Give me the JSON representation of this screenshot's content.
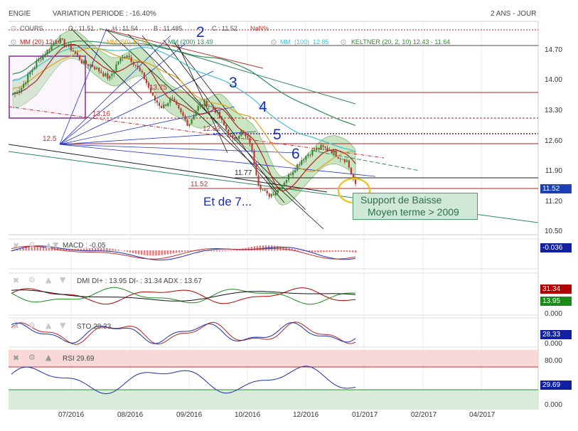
{
  "header": {
    "symbol": "ENGIE",
    "variation": "VARIATION PERIODE : -16.40%",
    "period": "2 ANS - JOUR"
  },
  "ohlc_legend": {
    "label": "COURS",
    "o": "O : 11.51",
    "h": "H : 11.54",
    "b": "B : 11.485",
    "c": "C : 11.52",
    "nan": "NaN%"
  },
  "indicators": {
    "mm20": "MM (20) 12.10",
    "mm50": "MM (50) 13.16",
    "mm200": "MM (200) 13.49",
    "mm100_label": "MM",
    "mm100_period": "(100)",
    "mm100_value": "12.85",
    "keltner": "KELTNER (20, 2, 10) 12.43 - 11.64"
  },
  "annotations": {
    "n2": "2",
    "n3": "3",
    "n4": "4",
    "n5": "5",
    "n6": "6",
    "et7": "Et de 7...",
    "support_line1": "Support de Baisse",
    "support_line2": "Moyen terme > 2009",
    "lvl_1375": "13.75",
    "lvl_1316": "13.16",
    "lvl_1282": "12.82",
    "lvl_125": "12.5",
    "lvl_1177": "11.77",
    "lvl_1152": "11.52"
  },
  "colors": {
    "candle_up": "#2e8b2e",
    "candle_down": "#c0392b",
    "keltner_fill": "#9ccf8f",
    "mm20": "#b22222",
    "mm50": "#e0a020",
    "mm100": "#40c0d8",
    "mm200": "#2e8b57",
    "fan": "#2233cc",
    "accent_badge_price": "#1f3fb4",
    "badge_red": "#b20000",
    "badge_green": "#1b8a1b",
    "badge_blue": "#1020a0",
    "rsi_overbought": "#f6c8c8",
    "rsi_oversold": "#cfe6cf",
    "circle": "#f0c020"
  },
  "panels": {
    "macd_title": "MACD : -0.05",
    "dmi_title": "DMI DI+ : 13.95 DI- : 31.34 ADX : 13.67",
    "sto_title": "STO 28.33",
    "rsi_title": "RSI 29.69"
  },
  "badges": {
    "price": "11.52",
    "macd": "-0.036",
    "dmi_minus": "31.34",
    "dmi_plus": "13.95",
    "sto": "28.33",
    "rsi": "29.69"
  },
  "chart_data": [
    {
      "type": "candlestick",
      "title": "ENGIE",
      "y_ticks": [
        "14.70",
        "14.00",
        "13.30",
        "12.60",
        "11.90",
        "11.20",
        "10.50"
      ],
      "ylim": [
        10.5,
        14.95
      ],
      "x_ticks": [
        "07/2016",
        "08/2016",
        "09/2016",
        "10/2016",
        "12/2016",
        "01/2017",
        "02/2017",
        "04/2017"
      ],
      "grid": true,
      "approx_close_series": [
        13.6,
        13.75,
        14.1,
        14.4,
        14.6,
        14.85,
        14.75,
        14.55,
        14.3,
        14.25,
        14.1,
        13.95,
        14.35,
        14.5,
        14.25,
        13.95,
        13.5,
        13.3,
        13.5,
        13.2,
        12.9,
        13.3,
        13.4,
        13.25,
        12.9,
        12.55,
        12.75,
        12.5,
        11.55,
        11.3,
        11.4,
        11.65,
        11.9,
        12.15,
        12.3,
        12.4,
        12.35,
        12.2,
        12.1,
        11.52
      ]
    },
    {
      "type": "line",
      "title": "MACD : -0.05",
      "y_ticks": []
    },
    {
      "type": "line",
      "title": "DMI DI+ : 13.95 DI- : 31.34 ADX : 13.67",
      "y_ticks": [
        "0.000"
      ],
      "series": [
        {
          "name": "DI+",
          "last": 13.95
        },
        {
          "name": "DI-",
          "last": 31.34
        },
        {
          "name": "ADX",
          "last": 13.67
        }
      ]
    },
    {
      "type": "line",
      "title": "STO 28.33",
      "y_ticks": [
        "0.000"
      ],
      "last": 28.33
    },
    {
      "type": "line",
      "title": "RSI 29.69",
      "y_ticks": [
        "80.00",
        "0.000"
      ],
      "last": 29.69
    }
  ]
}
